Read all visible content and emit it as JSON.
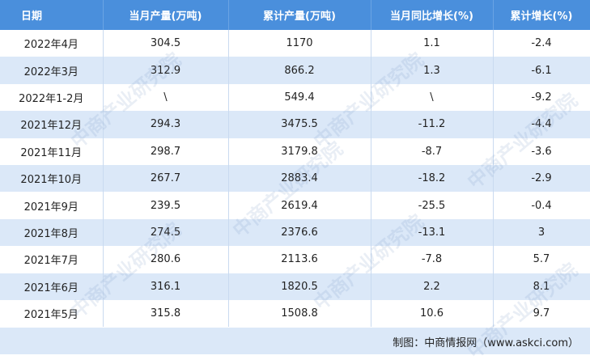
{
  "table": {
    "header": [
      "日期",
      "当月产量(万吨)",
      "累计产量(万吨)",
      "当月同比增长(%)",
      "累计增长(%)"
    ],
    "rows": [
      [
        "2022年4月",
        "304.5",
        "1170",
        "1.1",
        "-2.4"
      ],
      [
        "2022年3月",
        "312.9",
        "866.2",
        "1.3",
        "-6.1"
      ],
      [
        "2022年1-2月",
        "\\",
        "549.4",
        "\\",
        "-9.2"
      ],
      [
        "2021年12月",
        "294.3",
        "3475.5",
        "-11.2",
        "-4.4"
      ],
      [
        "2021年11月",
        "298.7",
        "3179.8",
        "-8.7",
        "-3.6"
      ],
      [
        "2021年10月",
        "267.7",
        "2883.4",
        "-18.2",
        "-2.9"
      ],
      [
        "2021年9月",
        "239.5",
        "2619.4",
        "-25.5",
        "-0.4"
      ],
      [
        "2021年8月",
        "274.5",
        "2376.6",
        "-13.1",
        "3"
      ],
      [
        "2021年7月",
        "280.6",
        "2113.6",
        "-7.8",
        "5.7"
      ],
      [
        "2021年6月",
        "316.1",
        "1820.5",
        "2.2",
        "8.1"
      ],
      [
        "2021年5月",
        "315.8",
        "1508.8",
        "10.6",
        "9.7"
      ]
    ]
  },
  "source": "制图：中商情报网（www.askci.com）",
  "watermark": "中商产业研究院"
}
